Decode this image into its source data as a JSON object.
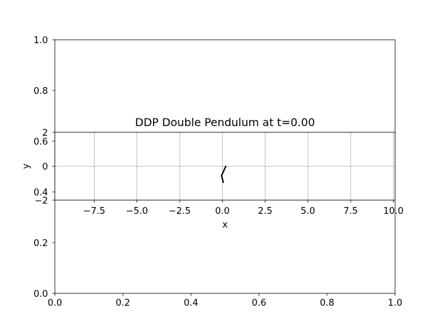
{
  "chart_data": [
    {
      "type": "line",
      "role": "background_axes",
      "title": "",
      "xlabel": "",
      "ylabel": "",
      "xlim": [
        0,
        1
      ],
      "ylim": [
        0,
        1
      ],
      "x_ticks": [
        0.0,
        0.2,
        0.4,
        0.6,
        0.8,
        1.0
      ],
      "x_tick_labels": [
        "0.0",
        "0.2",
        "0.4",
        "0.6",
        "0.8",
        "1.0"
      ],
      "y_ticks": [
        0.0,
        0.2,
        0.4,
        0.6,
        0.8,
        1.0
      ],
      "y_tick_labels": [
        "0.0",
        "0.2",
        "0.4",
        "0.6",
        "0.8",
        "1.0"
      ],
      "grid": false,
      "series": []
    },
    {
      "type": "line",
      "role": "pendulum_axes",
      "title": "DDP Double Pendulum at t=0.00",
      "xlabel": "x",
      "ylabel": "y",
      "xlim": [
        -9.8,
        10.1
      ],
      "ylim": [
        -2,
        2
      ],
      "x_ticks": [
        -7.5,
        -5.0,
        -2.5,
        0.0,
        2.5,
        5.0,
        7.5,
        10.0
      ],
      "x_tick_labels": [
        "−7.5",
        "−5.0",
        "−2.5",
        "0.0",
        "2.5",
        "5.0",
        "7.5",
        "10.0"
      ],
      "y_ticks": [
        2,
        0,
        -2
      ],
      "y_tick_labels": [
        "2",
        "0",
        "−2"
      ],
      "grid": true,
      "grid_color": "#b0b0b0",
      "line_color": "#000000",
      "series": [
        {
          "x": [
            0.2,
            -0.05,
            0.05
          ],
          "y": [
            0.0,
            -0.55,
            -0.95
          ]
        }
      ]
    }
  ]
}
